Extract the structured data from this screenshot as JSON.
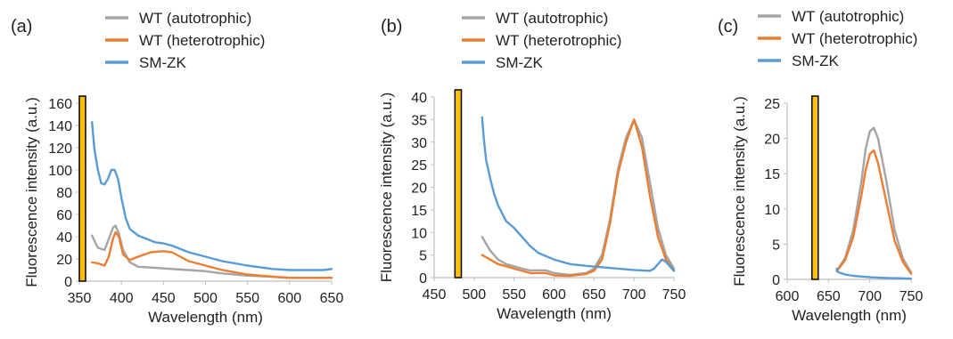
{
  "chart_data": [
    {
      "type": "line",
      "panel_label": "(a)",
      "xlabel": "Wavelength (nm)",
      "ylabel": "Fluorescence intensity (a.u.)",
      "xlim": [
        350,
        650
      ],
      "ylim": [
        0,
        160
      ],
      "xticks": [
        350,
        400,
        450,
        500,
        550,
        600,
        650
      ],
      "yticks": [
        0,
        20,
        40,
        60,
        80,
        100,
        120,
        140,
        160
      ],
      "xtick_labels": [
        "350",
        "400",
        "450",
        "500",
        "550",
        "600",
        "650"
      ],
      "ytick_labels": [
        "0",
        "20",
        "40",
        "60",
        "80",
        "100",
        "120",
        "140",
        "160"
      ],
      "excitation_band": [
        350,
        356
      ],
      "series": [
        {
          "name": "WT (autotrophic)",
          "color": "#a5a5a5",
          "x": [
            365,
            372,
            380,
            385,
            390,
            393,
            397,
            402,
            410,
            420,
            440,
            460,
            480,
            500,
            520,
            550,
            580,
            600,
            620,
            650
          ],
          "y": [
            41,
            30,
            28,
            38,
            48,
            50,
            43,
            28,
            17,
            13,
            12,
            11,
            10,
            9,
            7,
            5,
            4,
            3,
            3,
            3
          ]
        },
        {
          "name": "WT (heterotrophic)",
          "color": "#ed7d31",
          "x": [
            365,
            372,
            380,
            385,
            390,
            393,
            397,
            402,
            410,
            420,
            435,
            450,
            460,
            470,
            480,
            500,
            520,
            550,
            580,
            600,
            620,
            650
          ],
          "y": [
            17,
            16,
            14,
            22,
            38,
            44,
            40,
            24,
            19,
            22,
            26,
            27,
            26,
            22,
            18,
            14,
            10,
            6,
            4,
            3,
            3,
            3
          ]
        },
        {
          "name": "SM-ZK",
          "color": "#5b9bd5",
          "x": [
            365,
            368,
            372,
            376,
            380,
            384,
            388,
            392,
            396,
            400,
            405,
            410,
            420,
            430,
            440,
            450,
            460,
            470,
            480,
            500,
            520,
            550,
            580,
            600,
            620,
            640,
            650
          ],
          "y": [
            143,
            118,
            100,
            88,
            87,
            92,
            100,
            100,
            92,
            75,
            57,
            47,
            41,
            38,
            35,
            34,
            32,
            29,
            26,
            22,
            18,
            14,
            11,
            10,
            10,
            10,
            11
          ]
        }
      ]
    },
    {
      "type": "line",
      "panel_label": "(b)",
      "xlabel": "Wavelength (nm)",
      "ylabel": "Fluorescence intensity (a.u.)",
      "xlim": [
        450,
        750
      ],
      "ylim": [
        0,
        40
      ],
      "xticks": [
        450,
        500,
        550,
        600,
        650,
        700,
        750
      ],
      "yticks": [
        0,
        5,
        10,
        15,
        20,
        25,
        30,
        35,
        40
      ],
      "xtick_labels": [
        "450",
        "500",
        "550",
        "600",
        "650",
        "700",
        "750"
      ],
      "ytick_labels": [
        "0",
        "5",
        "10",
        "15",
        "20",
        "25",
        "30",
        "35",
        "40"
      ],
      "excitation_band": [
        476,
        484
      ],
      "series": [
        {
          "name": "WT (autotrophic)",
          "color": "#a5a5a5",
          "x": [
            510,
            520,
            530,
            540,
            550,
            560,
            570,
            580,
            590,
            600,
            620,
            640,
            650,
            660,
            670,
            680,
            690,
            700,
            710,
            720,
            730,
            740,
            750
          ],
          "y": [
            9,
            6,
            4,
            3,
            2.5,
            2,
            1.6,
            1.6,
            1.6,
            1,
            0.6,
            1,
            2,
            5,
            13,
            24,
            31,
            35,
            31,
            21,
            11,
            5,
            2
          ]
        },
        {
          "name": "WT (heterotrophic)",
          "color": "#ed7d31",
          "x": [
            510,
            520,
            530,
            540,
            550,
            560,
            570,
            580,
            590,
            600,
            620,
            640,
            650,
            660,
            670,
            680,
            690,
            700,
            710,
            720,
            730,
            740,
            750
          ],
          "y": [
            5,
            4,
            3,
            2.5,
            2,
            1.5,
            1,
            1,
            1,
            0.5,
            0.4,
            0.8,
            1.5,
            4,
            12,
            23,
            30,
            35,
            29,
            18,
            9,
            4,
            1.5
          ]
        },
        {
          "name": "SM-ZK",
          "color": "#5b9bd5",
          "x": [
            510,
            512,
            515,
            520,
            525,
            530,
            540,
            550,
            560,
            570,
            580,
            600,
            620,
            640,
            660,
            680,
            700,
            720,
            725,
            730,
            735,
            740,
            745,
            750
          ],
          "y": [
            35.5,
            31,
            26,
            22,
            18.5,
            16,
            12.5,
            11,
            9,
            7,
            5.5,
            4,
            3,
            2.6,
            2.3,
            2,
            1.7,
            1.5,
            2,
            3,
            4,
            3.5,
            2.5,
            1.5
          ]
        }
      ]
    },
    {
      "type": "line",
      "panel_label": "(c)",
      "xlabel": "Wavelength (nm)",
      "ylabel": "Fluorescence intensity (a.u.)",
      "xlim": [
        600,
        750
      ],
      "ylim": [
        0,
        25
      ],
      "xticks": [
        600,
        650,
        700,
        750
      ],
      "yticks": [
        0,
        5,
        10,
        15,
        20,
        25
      ],
      "xtick_labels": [
        "600",
        "650",
        "700",
        "750"
      ],
      "ytick_labels": [
        "0",
        "5",
        "10",
        "15",
        "20",
        "25"
      ],
      "excitation_band": [
        630,
        636
      ],
      "series": [
        {
          "name": "WT (autotrophic)",
          "color": "#a5a5a5",
          "x": [
            660,
            670,
            680,
            690,
            695,
            700,
            705,
            710,
            720,
            730,
            740,
            750
          ],
          "y": [
            1.2,
            3,
            7,
            14,
            18.5,
            21,
            21.5,
            20,
            14,
            7,
            3,
            1
          ]
        },
        {
          "name": "WT (heterotrophic)",
          "color": "#ed7d31",
          "x": [
            660,
            670,
            680,
            690,
            695,
            700,
            705,
            710,
            720,
            730,
            740,
            750
          ],
          "y": [
            1.2,
            2.7,
            6,
            12,
            15.5,
            17.8,
            18.3,
            16.5,
            11,
            5.5,
            2.5,
            0.8
          ]
        },
        {
          "name": "SM-ZK",
          "color": "#5b9bd5",
          "x": [
            660,
            662,
            665,
            670,
            680,
            690,
            700,
            720,
            740,
            750
          ],
          "y": [
            1.5,
            1.0,
            0.9,
            0.7,
            0.5,
            0.4,
            0.3,
            0.2,
            0.15,
            0.1
          ]
        }
      ]
    }
  ],
  "colors": {
    "excitation_fill": "#ffc000",
    "excitation_stroke": "#000000",
    "axis": "#bfbfbf"
  }
}
